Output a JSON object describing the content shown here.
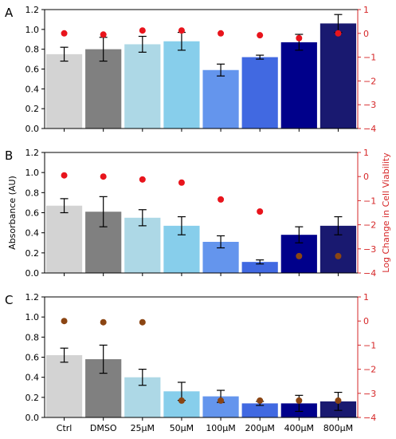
{
  "chart_data": [
    {
      "type": "bar",
      "panel_label": "A",
      "categories": [
        "Ctrl",
        "DMSO",
        "25µM",
        "50µM",
        "100µM",
        "200µM",
        "400µM",
        "800µM"
      ],
      "series": [
        {
          "values": [
            0.75,
            0.8,
            0.85,
            0.88,
            0.59,
            0.72,
            0.87,
            1.06
          ],
          "errors": [
            0.07,
            0.12,
            0.08,
            0.09,
            0.06,
            0.02,
            0.08,
            0.09
          ],
          "axis": "left"
        },
        {
          "type": "scatter",
          "values": [
            0.0,
            -0.05,
            0.12,
            0.12,
            0.0,
            -0.08,
            -0.2,
            0.0
          ],
          "axis": "right"
        }
      ],
      "ylim": [
        0,
        1.2
      ],
      "yticks": [
        "0.0",
        "0.2",
        "0.4",
        "0.6",
        "0.8",
        "1.0",
        "1.2"
      ],
      "y2lim": [
        -4,
        1
      ],
      "y2ticks": [
        "−4",
        "−3",
        "−2",
        "−1",
        "0",
        "1"
      ],
      "show_xticklabels": false
    },
    {
      "type": "bar",
      "panel_label": "B",
      "categories": [
        "Ctrl",
        "DMSO",
        "25µM",
        "50µM",
        "100µM",
        "200µM",
        "400µM",
        "800µM"
      ],
      "series": [
        {
          "values": [
            0.67,
            0.61,
            0.55,
            0.47,
            0.31,
            0.11,
            0.38,
            0.47
          ],
          "errors": [
            0.07,
            0.15,
            0.08,
            0.09,
            0.06,
            0.02,
            0.08,
            0.09
          ],
          "axis": "left"
        },
        {
          "type": "scatter",
          "values": [
            0.05,
            0.0,
            -0.12,
            -0.25,
            -0.95,
            -1.45,
            -3.3,
            -3.3
          ],
          "axis": "right"
        }
      ],
      "ylim": [
        0,
        1.2
      ],
      "yticks": [
        "0.0",
        "0.2",
        "0.4",
        "0.6",
        "0.8",
        "1.0",
        "1.2"
      ],
      "y2lim": [
        -4,
        1
      ],
      "y2ticks": [
        "−4",
        "−3",
        "−2",
        "−1",
        "0",
        "1"
      ],
      "ylabel": "Absorbance (AU)",
      "y2label": "Log Change in Cell Viability",
      "show_xticklabels": false
    },
    {
      "type": "bar",
      "panel_label": "C",
      "categories": [
        "Ctrl",
        "DMSO",
        "25µM",
        "50µM",
        "100µM",
        "200µM",
        "400µM",
        "800µM"
      ],
      "series": [
        {
          "values": [
            0.62,
            0.58,
            0.4,
            0.26,
            0.21,
            0.14,
            0.14,
            0.16
          ],
          "errors": [
            0.07,
            0.14,
            0.08,
            0.09,
            0.06,
            0.02,
            0.08,
            0.09
          ],
          "axis": "left"
        },
        {
          "type": "scatter",
          "values": [
            0.0,
            -0.05,
            -0.05,
            -3.3,
            -3.3,
            -3.3,
            -3.3,
            -3.3
          ],
          "axis": "right"
        }
      ],
      "ylim": [
        0,
        1.2
      ],
      "yticks": [
        "0.0",
        "0.2",
        "0.4",
        "0.6",
        "0.8",
        "1.0",
        "1.2"
      ],
      "y2lim": [
        -4,
        1
      ],
      "y2ticks": [
        "−4",
        "−3",
        "−2",
        "−1",
        "0",
        "1"
      ],
      "show_xticklabels": true
    }
  ],
  "colors": {
    "bars": [
      "#d3d3d3",
      "#808080",
      "#add8e6",
      "#87ceeb",
      "#6495ed",
      "#4169e1",
      "#00008b",
      "#191970"
    ],
    "scatter_default": "#e8141c",
    "scatter_muted": "#8b4513",
    "right_axis": "#d62728",
    "axis": "#000000"
  }
}
